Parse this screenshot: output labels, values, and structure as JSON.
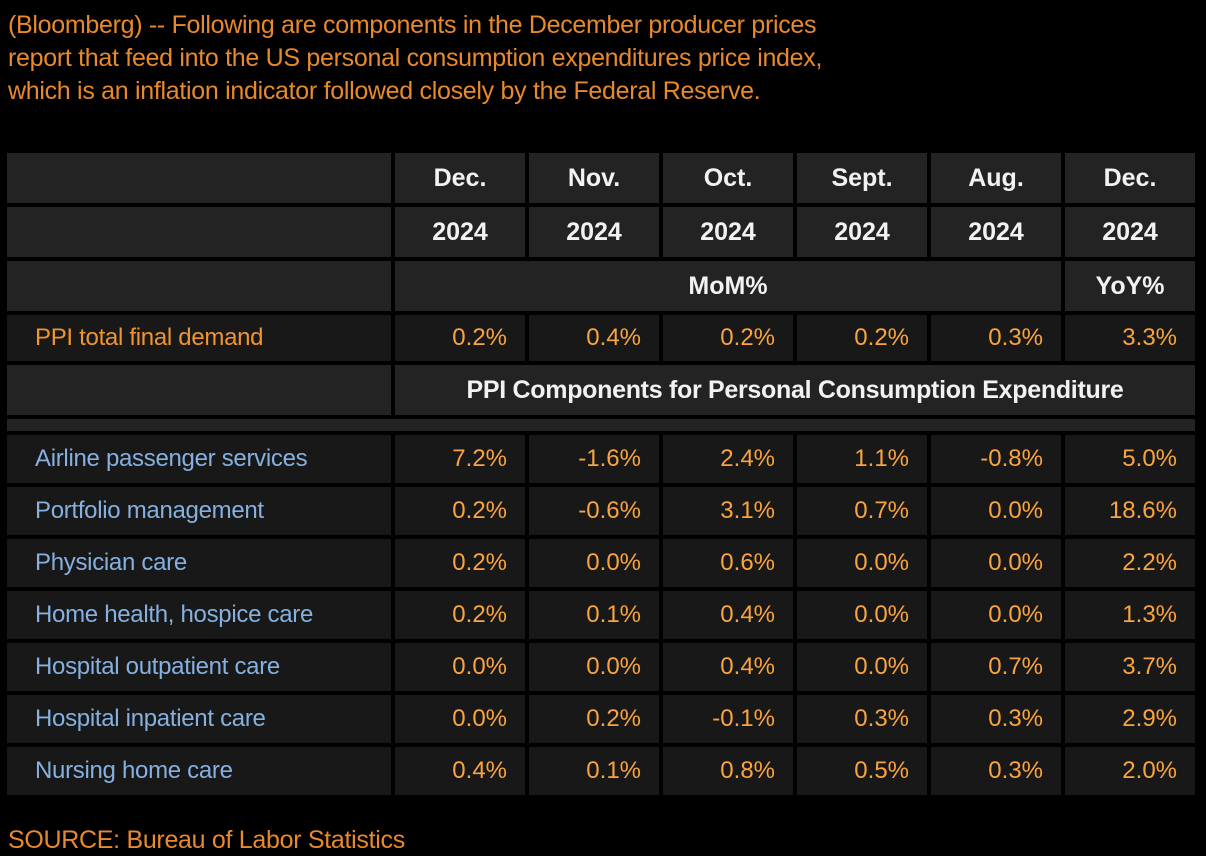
{
  "colors": {
    "page_bg": "#000000",
    "header_cell_bg": "#232323",
    "data_cell_bg": "#181818",
    "intro_orange": "#E8892B",
    "value_orange": "#F9A43F",
    "summary_label_orange": "#F09430",
    "row_label_blue": "#85B0E0",
    "header_text_white": "#F2F2F2"
  },
  "intro": {
    "line1": "(Bloomberg) -- Following are components in the December producer prices",
    "line2": "report that feed into the US personal consumption expenditures price index,",
    "line3": "which is an inflation indicator followed closely by the Federal Reserve."
  },
  "table": {
    "columns": [
      {
        "month": "Dec.",
        "year": "2024"
      },
      {
        "month": "Nov.",
        "year": "2024"
      },
      {
        "month": "Oct.",
        "year": "2024"
      },
      {
        "month": "Sept.",
        "year": "2024"
      },
      {
        "month": "Aug.",
        "year": "2024"
      },
      {
        "month": "Dec.",
        "year": "2024"
      }
    ],
    "period_row": {
      "mom_label": "MoM%",
      "yoy_label": "YoY%"
    },
    "summary_row": {
      "label": "PPI total final demand",
      "values": [
        "0.2%",
        "0.4%",
        "0.2%",
        "0.2%",
        "0.3%",
        "3.3%"
      ]
    },
    "section_header": "PPI Components for Personal Consumption Expenditure",
    "rows": [
      {
        "label": "Airline passenger services",
        "values": [
          "7.2%",
          "-1.6%",
          "2.4%",
          "1.1%",
          "-0.8%",
          "5.0%"
        ]
      },
      {
        "label": "Portfolio management",
        "values": [
          "0.2%",
          "-0.6%",
          "3.1%",
          "0.7%",
          "0.0%",
          "18.6%"
        ]
      },
      {
        "label": "Physician care",
        "values": [
          "0.2%",
          "0.0%",
          "0.6%",
          "0.0%",
          "0.0%",
          "2.2%"
        ]
      },
      {
        "label": "Home health, hospice care",
        "values": [
          "0.2%",
          "0.1%",
          "0.4%",
          "0.0%",
          "0.0%",
          "1.3%"
        ]
      },
      {
        "label": "Hospital outpatient care",
        "values": [
          "0.0%",
          "0.0%",
          "0.4%",
          "0.0%",
          "0.7%",
          "3.7%"
        ]
      },
      {
        "label": "Hospital inpatient care",
        "values": [
          "0.0%",
          "0.2%",
          "-0.1%",
          "0.3%",
          "0.3%",
          "2.9%"
        ]
      },
      {
        "label": "Nursing home care",
        "values": [
          "0.4%",
          "0.1%",
          "0.8%",
          "0.5%",
          "0.3%",
          "2.0%"
        ]
      }
    ]
  },
  "source": "SOURCE: Bureau of Labor Statistics"
}
